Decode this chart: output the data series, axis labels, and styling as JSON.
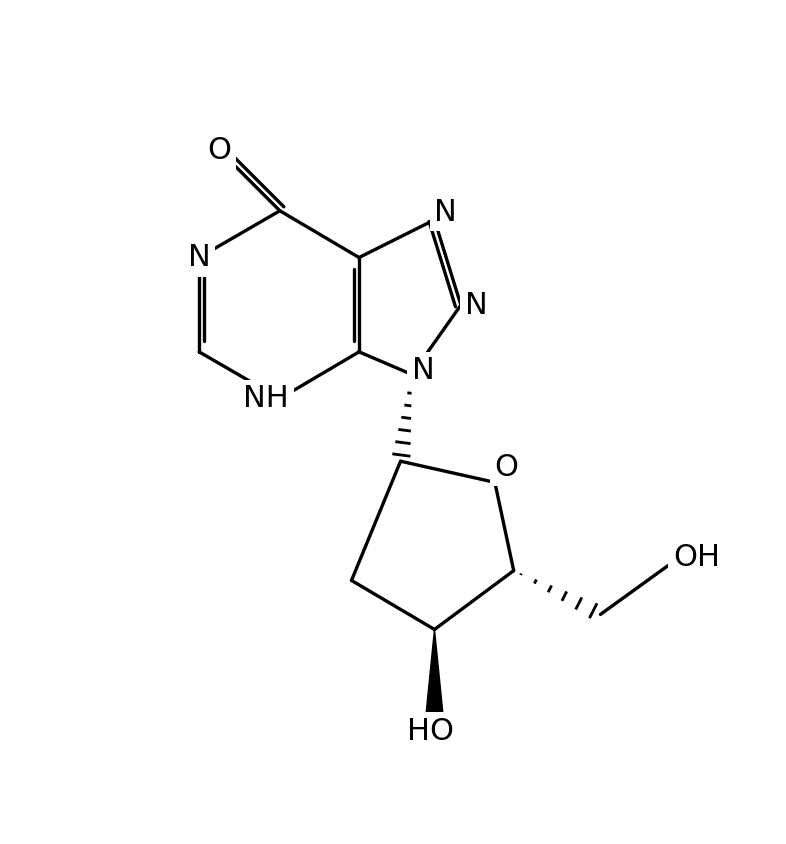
{
  "background_color": "#ffffff",
  "line_color": "#000000",
  "line_width": 2.4,
  "figsize": [
    7.86,
    8.44
  ],
  "dpi": 100,
  "xlim": [
    0,
    10
  ],
  "ylim": [
    0,
    10.74
  ],
  "font_size": 22
}
